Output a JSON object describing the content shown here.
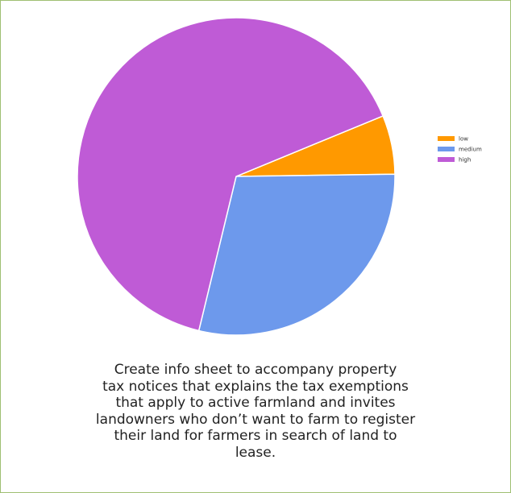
{
  "chart_data": {
    "type": "pie",
    "slices": [
      {
        "label": "low",
        "value": 6,
        "color": "#ff9900"
      },
      {
        "label": "medium",
        "value": 29,
        "color": "#6d99ec"
      },
      {
        "label": "high",
        "value": 65,
        "color": "#bf5bd6"
      }
    ],
    "legend_position": "right",
    "title": ""
  },
  "caption": {
    "text": "Create info sheet to accompany property\ntax notices that explains the tax exemptions\nthat apply to active farmland and invites\nlandowners who don’t want to farm to register\ntheir land for farmers in search of land to\nlease."
  }
}
